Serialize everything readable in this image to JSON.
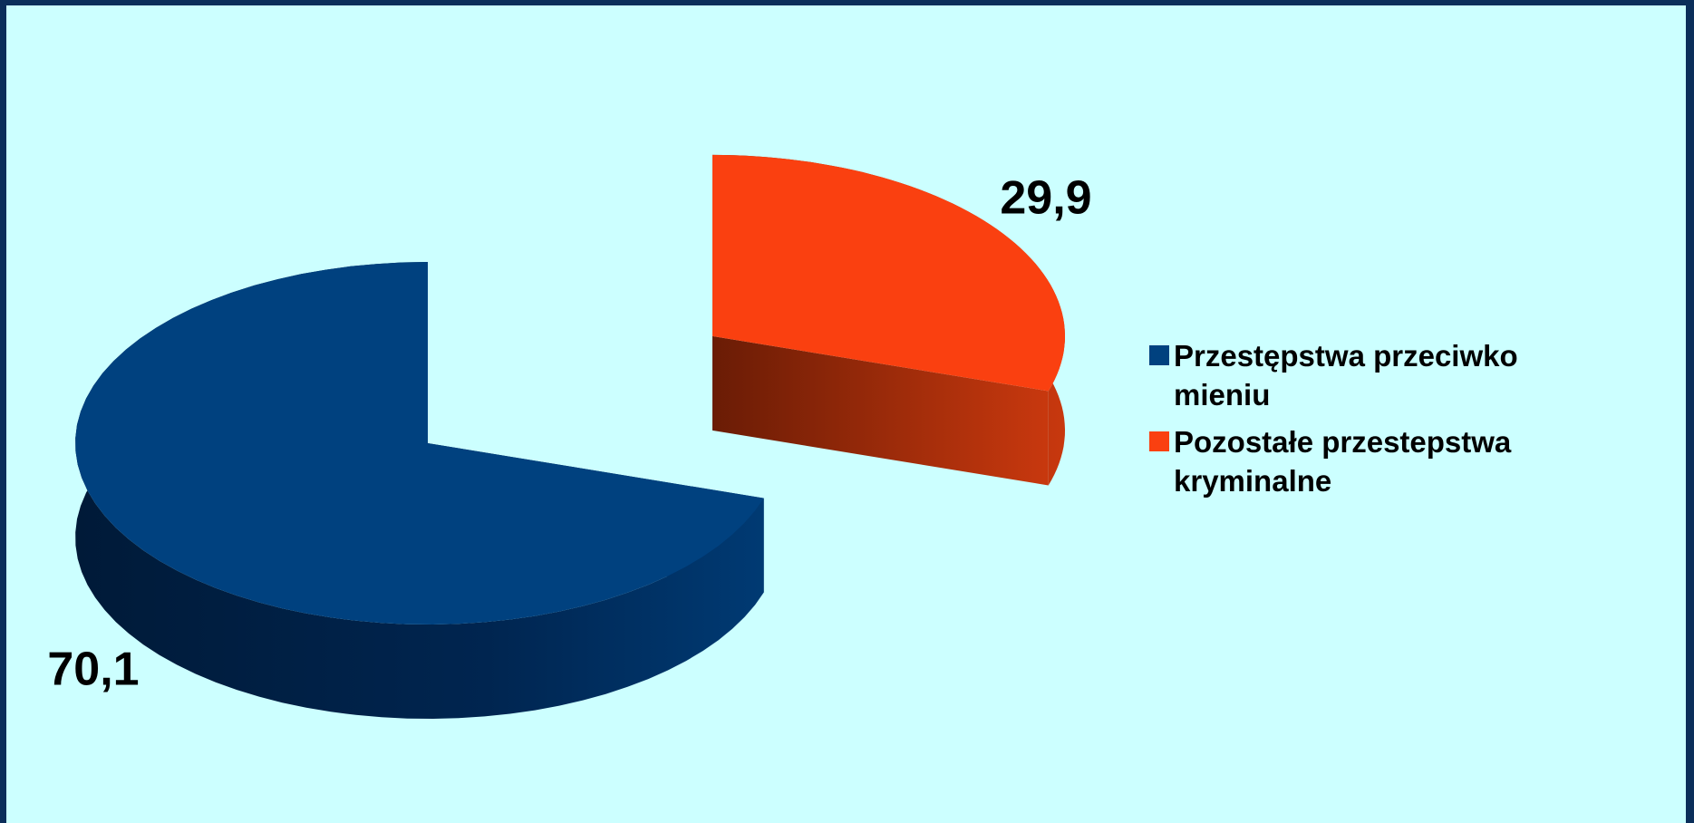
{
  "chart_data": {
    "type": "pie3d",
    "categories": [
      "Przestępstwa przeciwko mieniu",
      "Pozostałe przestepstwa kryminalne"
    ],
    "values": [
      70.1,
      29.9
    ],
    "value_labels": [
      "70,1",
      "29,9"
    ],
    "colors": [
      "#00417f",
      "#fa4010"
    ],
    "legend": "right"
  }
}
